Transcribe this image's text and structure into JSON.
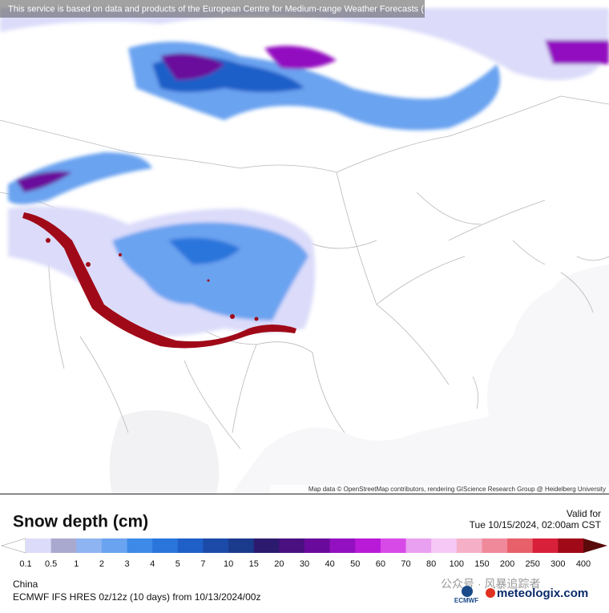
{
  "header": {
    "notice": "This service is based on data and products of the European Centre for Medium-range Weather Forecasts ("
  },
  "map": {
    "attribution": "Map data © OpenStreetMap contributors, rendering GIScience Research Group @ Heidelberg University"
  },
  "legend": {
    "title": "Snow depth (cm)",
    "valid_label": "Valid for",
    "valid_time": "Tue 10/15/2024, 02:00am CST",
    "ticks": [
      0.1,
      0.5,
      1,
      2,
      3,
      4,
      5,
      7,
      10,
      15,
      20,
      30,
      40,
      50,
      60,
      70,
      80,
      100,
      150,
      200,
      250,
      300,
      400
    ],
    "colors": [
      "#dcdcfa",
      "#a9a9d0",
      "#8fb4f2",
      "#6aa3f0",
      "#3d8ae8",
      "#2a75db",
      "#1f5fc8",
      "#1c4aa8",
      "#1a3a8c",
      "#2c1a6e",
      "#4a1080",
      "#6a0a9c",
      "#9310c0",
      "#b81ad8",
      "#d84ae8",
      "#eaa0f0",
      "#f5c8f5",
      "#f5b0c8",
      "#f08a9a",
      "#e8606a",
      "#d8203a",
      "#a00a18"
    ]
  },
  "footer": {
    "region": "China",
    "model": "ECMWF IFS HRES 0z/12z (10 days) from 10/13/2024/00z",
    "watermark": "公众号 · 风暴追踪者",
    "ecmwf": "ECMWF",
    "brand": "meteologix.com"
  }
}
